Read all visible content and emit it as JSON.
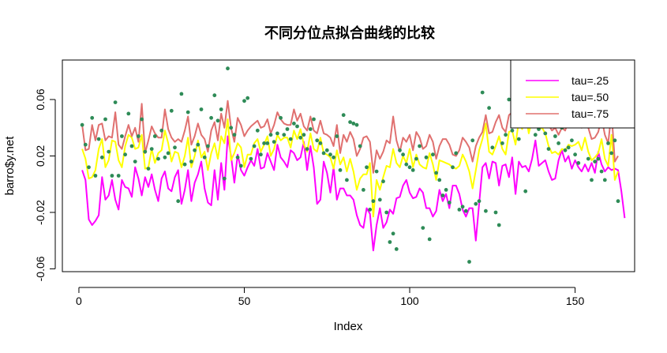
{
  "chart_data": {
    "type": "line",
    "title": "不同分位点拟合曲线的比较",
    "xlabel": "Index",
    "ylabel": "barro$y.net",
    "xlim": [
      -5,
      168
    ],
    "ylim": [
      -0.062,
      0.088
    ],
    "x_ticks": [
      0,
      50,
      100,
      150
    ],
    "y_ticks": [
      -0.06,
      -0.02,
      0.02,
      0.06
    ],
    "x_tick_labels": [
      "0",
      "50",
      "100",
      "150"
    ],
    "y_tick_labels": [
      "-0.06",
      "-0.02",
      "0.02",
      "0.06"
    ],
    "legend_position": "top-right",
    "points": {
      "color": "#2e8b57",
      "x": [
        1,
        2,
        3,
        4,
        5,
        6,
        7,
        8,
        9,
        10,
        11,
        12,
        13,
        14,
        15,
        16,
        17,
        18,
        19,
        20,
        21,
        22,
        23,
        24,
        25,
        26,
        27,
        28,
        29,
        30,
        31,
        32,
        33,
        34,
        35,
        36,
        37,
        38,
        39,
        40,
        41,
        42,
        43,
        44,
        45,
        46,
        47,
        48,
        49,
        50,
        51,
        52,
        53,
        54,
        55,
        56,
        57,
        58,
        59,
        60,
        61,
        62,
        63,
        64,
        65,
        66,
        67,
        68,
        69,
        70,
        71,
        72,
        73,
        74,
        75,
        76,
        77,
        78,
        79,
        80,
        81,
        82,
        83,
        84,
        85,
        86,
        87,
        88,
        89,
        90,
        91,
        92,
        93,
        94,
        95,
        96,
        97,
        98,
        99,
        100,
        101,
        102,
        103,
        104,
        105,
        106,
        107,
        108,
        109,
        110,
        111,
        112,
        113,
        114,
        115,
        116,
        117,
        118,
        119,
        120,
        121,
        122,
        123,
        124,
        125,
        126,
        127,
        128,
        129,
        130,
        131,
        132,
        133,
        134,
        135,
        136,
        137,
        138,
        139,
        140,
        141,
        142,
        143,
        144,
        145,
        146,
        147,
        148,
        149,
        150,
        151,
        152,
        153,
        154,
        155,
        156,
        157,
        158,
        159,
        160,
        161,
        162,
        163
      ],
      "y": [
        0.042,
        0.028,
        0.012,
        0.047,
        0.006,
        0.032,
        0.019,
        0.046,
        0.023,
        0.006,
        0.058,
        0.006,
        0.034,
        0.021,
        0.05,
        0.027,
        0.016,
        0.034,
        0.046,
        0.023,
        0.011,
        0.025,
        0.034,
        0.018,
        0.038,
        0.019,
        0.022,
        0.052,
        0.026,
        -0.012,
        0.064,
        0.014,
        0.051,
        0.016,
        0.024,
        0.028,
        0.053,
        0.019,
        0.027,
        0.047,
        0.063,
        0.045,
        0.053,
        0.004,
        0.082,
        0.04,
        0.035,
        0.019,
        0.013,
        0.059,
        0.061,
        0.018,
        0.027,
        0.038,
        0.021,
        0.029,
        0.029,
        0.035,
        0.03,
        0.036,
        0.047,
        0.035,
        0.039,
        0.032,
        0.043,
        0.041,
        0.033,
        0.035,
        0.025,
        0.039,
        0.046,
        0.031,
        0.029,
        0.022,
        0.024,
        0.021,
        0.019,
        0.034,
        0.01,
        0.049,
        0.003,
        0.044,
        0.043,
        0.042,
        0.027,
        -0.004,
        0.012,
        -0.018,
        -0.012,
        0.009,
        -0.011,
        0.002,
        -0.02,
        -0.041,
        -0.035,
        -0.046,
        0.024,
        0.021,
        0.014,
        0.012,
        0.01,
        0.018,
        0.027,
        -0.031,
        0.019,
        -0.039,
        0.021,
        0.008,
        0.003,
        -0.008,
        -0.004,
        -0.013,
        0.012,
        0.022,
        -0.018,
        -0.016,
        -0.019,
        -0.055,
        0.031,
        -0.014,
        -0.012,
        0.065,
        -0.019,
        0.054,
        0.026,
        -0.02,
        -0.029,
        0.029,
        0.035,
        0.06,
        0.038,
        0.06,
        0.032,
        0.051,
        -0.005,
        0.07,
        0.052,
        0.035,
        0.039,
        0.06,
        0.036,
        0.025,
        0.071,
        0.034,
        0.029,
        0.04,
        0.024,
        0.026,
        0.031,
        0.021,
        0.015,
        0.046,
        0.042,
        0.018,
        0.003,
        0.016,
        0.018,
        0.009,
        0.003,
        0.029,
        0.022,
        0.031,
        -0.012
      ]
    },
    "series": [
      {
        "name": "tau=.25",
        "color": "#ff00ff",
        "values": [
          0.01,
          0.003,
          -0.025,
          -0.029,
          -0.026,
          -0.022,
          0.005,
          -0.011,
          -0.008,
          0.003,
          -0.011,
          -0.018,
          0.003,
          -0.002,
          -0.003,
          -0.009,
          0.012,
          0.004,
          -0.008,
          0.005,
          -0.002,
          0.007,
          -0.004,
          -0.012,
          0.004,
          0.009,
          -0.003,
          -0.005,
          0.005,
          0.01,
          -0.014,
          -0.004,
          0.01,
          -0.012,
          0.001,
          0.007,
          0.016,
          -0.003,
          -0.013,
          -0.015,
          0.01,
          -0.011,
          0.015,
          -0.004,
          0.034,
          0.02,
          0.001,
          0.021,
          0.01,
          0.006,
          0.012,
          0.017,
          0.013,
          0.025,
          0.011,
          0.012,
          0.022,
          0.016,
          0.01,
          0.028,
          0.019,
          0.016,
          0.012,
          0.024,
          0.022,
          0.017,
          0.019,
          0.03,
          0.01,
          0.027,
          0.012,
          -0.014,
          -0.011,
          0.016,
          0.008,
          -0.006,
          0.012,
          -0.011,
          -0.003,
          -0.003,
          -0.008,
          -0.008,
          -0.011,
          -0.022,
          -0.029,
          -0.031,
          -0.017,
          -0.021,
          -0.047,
          -0.029,
          -0.017,
          -0.031,
          -0.027,
          -0.018,
          -0.021,
          -0.01,
          -0.009,
          -0.001,
          0.003,
          -0.006,
          -0.01,
          -0.009,
          -0.003,
          -0.006,
          -0.017,
          -0.017,
          -0.023,
          -0.019,
          -0.004,
          -0.012,
          -0.007,
          -0.017,
          -0.001,
          -0.001,
          -0.007,
          -0.018,
          -0.023,
          -0.017,
          -0.017,
          -0.04,
          -0.014,
          0.012,
          0.015,
          0.004,
          0.016,
          0.015,
          -0.001,
          0.013,
          0.014,
          0.005,
          0.019,
          -0.007,
          0.016,
          0.012,
          0.013,
          0.009,
          0.018,
          0.031,
          0.013,
          0.015,
          0.017,
          0.009,
          0.003,
          0.004,
          0.017,
          0.024,
          0.016,
          0.02,
          0.011,
          0.017,
          0.012,
          0.009,
          0.014,
          0.009,
          0.015,
          0.008,
          0.023,
          0.014,
          0.009,
          0.012,
          0.01,
          0.011,
          0.01,
          -0.005,
          -0.024
        ]
      },
      {
        "name": "tau=.50",
        "color": "#ffff00",
        "values": [
          0.025,
          0.018,
          0.004,
          0.005,
          0.01,
          0.025,
          0.032,
          0.012,
          0.017,
          0.031,
          0.03,
          0.017,
          0.012,
          0.027,
          0.035,
          0.033,
          0.025,
          0.026,
          0.035,
          0.011,
          0.012,
          0.025,
          0.015,
          0.022,
          0.024,
          0.038,
          0.029,
          0.016,
          0.023,
          0.022,
          0.012,
          0.02,
          0.033,
          0.012,
          0.02,
          0.031,
          0.019,
          0.023,
          0.01,
          0.022,
          0.029,
          0.018,
          0.034,
          0.029,
          0.046,
          0.017,
          0.022,
          0.029,
          0.026,
          0.012,
          0.021,
          0.021,
          0.029,
          0.032,
          0.023,
          0.028,
          0.034,
          0.02,
          0.025,
          0.035,
          0.031,
          0.033,
          0.033,
          0.026,
          0.038,
          0.032,
          0.039,
          0.028,
          0.023,
          0.036,
          0.025,
          0.023,
          0.033,
          0.022,
          0.021,
          0.019,
          0.011,
          0.024,
          0.014,
          0.019,
          0.009,
          0.018,
          0.009,
          -0.004,
          0.004,
          0.007,
          0.007,
          0.015,
          -0.023,
          0.003,
          -0.004,
          0.005,
          0.013,
          0.012,
          0.025,
          0.015,
          0.012,
          0.02,
          0.015,
          0.025,
          0.012,
          0.021,
          0.014,
          0.012,
          0.011,
          0.022,
          0.014,
          0.003,
          0.017,
          0.016,
          0.015,
          0.014,
          0.012,
          0.011,
          0.013,
          0.021,
          0.016,
          0.009,
          -0.003,
          0.01,
          0.024,
          0.032,
          0.043,
          0.023,
          0.021,
          0.027,
          0.034,
          0.025,
          0.021,
          0.037,
          0.038,
          0.028,
          0.045,
          0.039,
          0.05,
          0.036,
          0.046,
          0.052,
          0.039,
          0.04,
          0.036,
          0.027,
          0.022,
          0.023,
          0.021,
          0.025,
          0.024,
          0.028,
          0.027,
          0.028,
          0.03,
          0.024,
          0.033,
          0.023,
          0.017,
          0.019,
          0.022,
          0.032,
          0.018,
          0.013,
          0.035,
          0.003,
          0.009
        ]
      },
      {
        "name": "tau=.75",
        "color": "#e0706f",
        "values": [
          0.042,
          0.024,
          0.025,
          0.042,
          0.031,
          0.042,
          0.043,
          0.031,
          0.034,
          0.033,
          0.051,
          0.028,
          0.025,
          0.034,
          0.042,
          0.034,
          0.04,
          0.03,
          0.057,
          0.022,
          0.031,
          0.041,
          0.036,
          0.033,
          0.033,
          0.053,
          0.039,
          0.033,
          0.03,
          0.032,
          0.03,
          0.038,
          0.048,
          0.028,
          0.034,
          0.043,
          0.035,
          0.032,
          0.023,
          0.038,
          0.044,
          0.031,
          0.05,
          0.04,
          0.059,
          0.04,
          0.03,
          0.047,
          0.042,
          0.034,
          0.038,
          0.041,
          0.043,
          0.045,
          0.04,
          0.041,
          0.046,
          0.036,
          0.042,
          0.051,
          0.046,
          0.043,
          0.042,
          0.042,
          0.053,
          0.045,
          0.05,
          0.041,
          0.038,
          0.048,
          0.038,
          0.036,
          0.045,
          0.036,
          0.035,
          0.033,
          0.027,
          0.042,
          0.022,
          0.035,
          0.03,
          0.037,
          0.032,
          0.02,
          0.025,
          0.033,
          0.034,
          0.03,
          0.008,
          0.024,
          0.018,
          0.023,
          0.031,
          0.029,
          0.048,
          0.031,
          0.023,
          0.033,
          0.03,
          0.035,
          0.024,
          0.037,
          0.033,
          0.025,
          0.027,
          0.035,
          0.03,
          0.018,
          0.027,
          0.032,
          0.032,
          0.028,
          0.021,
          0.02,
          0.024,
          0.033,
          0.03,
          0.026,
          0.016,
          0.027,
          0.033,
          0.037,
          0.049,
          0.036,
          0.037,
          0.044,
          0.049,
          0.04,
          0.037,
          0.049,
          0.051,
          0.043,
          0.058,
          0.052,
          0.066,
          0.049,
          0.062,
          0.069,
          0.053,
          0.056,
          0.051,
          0.042,
          0.038,
          0.04,
          0.035,
          0.04,
          0.038,
          0.045,
          0.043,
          0.043,
          0.046,
          0.04,
          0.048,
          0.04,
          0.032,
          0.033,
          0.037,
          0.047,
          0.035,
          0.029,
          0.051,
          0.016,
          0.02
        ]
      }
    ]
  }
}
